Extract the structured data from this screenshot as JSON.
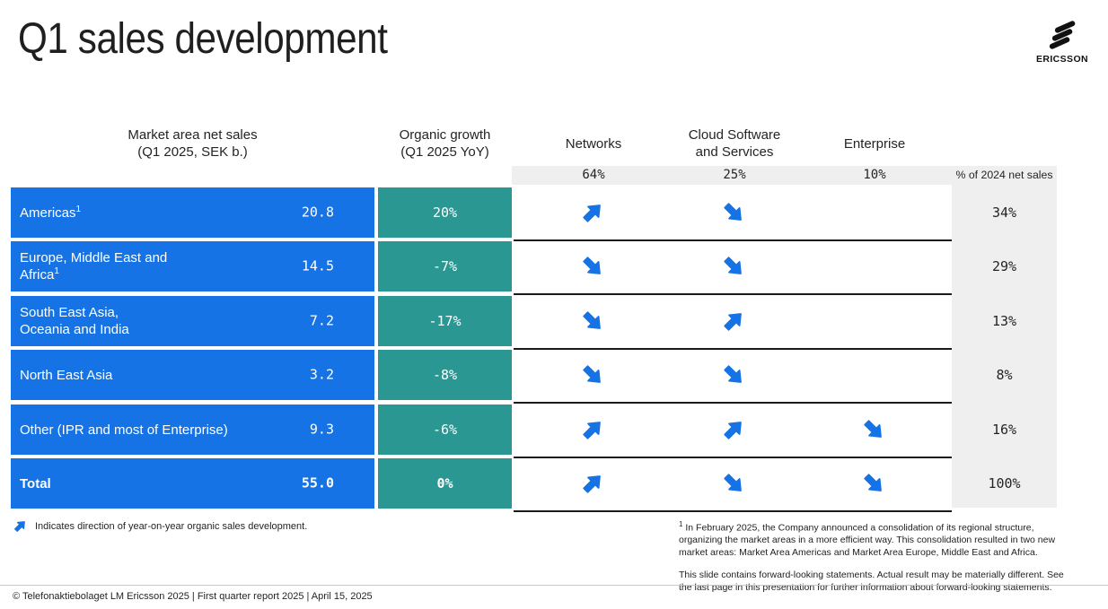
{
  "title": "Q1 sales development",
  "brand": "ERICSSON",
  "colors": {
    "blue": "#1673E5",
    "teal": "#2A9792",
    "band": "#EFEFEF"
  },
  "headers": {
    "market_l1": "Market area net sales",
    "market_l2": "(Q1 2025, SEK b.)",
    "growth_l1": "Organic growth",
    "growth_l2": "(Q1 2025 YoY)",
    "networks": "Networks",
    "cloud_l1": "Cloud Software",
    "cloud_l2": "and Services",
    "enterprise": "Enterprise",
    "share": "% of 2024 net sales"
  },
  "shares": {
    "networks": "64%",
    "cloud": "25%",
    "enterprise": "10%"
  },
  "rows": [
    {
      "line1": "Americas",
      "sup1": "1",
      "value": "20.8",
      "growth": "20%",
      "arrows": {
        "networks": "up",
        "cloud": "down",
        "enterprise": "none"
      },
      "share": "34%"
    },
    {
      "line1": "Europe, Middle East and",
      "line2": "Africa",
      "sup2": "1",
      "value": "14.5",
      "growth": "-7%",
      "arrows": {
        "networks": "down",
        "cloud": "down",
        "enterprise": "none"
      },
      "share": "29%"
    },
    {
      "line1": "South East Asia,",
      "line2": "Oceania and India",
      "value": "7.2",
      "growth": "-17%",
      "arrows": {
        "networks": "down",
        "cloud": "up",
        "enterprise": "none"
      },
      "share": "13%"
    },
    {
      "line1": "North East Asia",
      "value": "3.2",
      "growth": "-8%",
      "arrows": {
        "networks": "down",
        "cloud": "down",
        "enterprise": "none"
      },
      "share": "8%"
    },
    {
      "line1": "Other (IPR and most of Enterprise)",
      "value": "9.3",
      "growth": "-6%",
      "arrows": {
        "networks": "up",
        "cloud": "up",
        "enterprise": "down"
      },
      "share": "16%"
    },
    {
      "line1": "Total",
      "value": "55.0",
      "growth": "0%",
      "arrows": {
        "networks": "up",
        "cloud": "down",
        "enterprise": "down"
      },
      "share": "100%"
    }
  ],
  "legend": {
    "icon_dir": "up",
    "text": "Indicates direction of year-on-year organic sales development."
  },
  "footnotes": {
    "sup": "1",
    "note1": " In February 2025, the Company announced a consolidation of its regional structure, organizing the market areas in a more efficient way. This consolidation resulted in two new market areas: Market Area Americas and Market Area Europe, Middle East and Africa.",
    "note2": "This slide contains forward-looking statements. Actual result may be materially different. See the last page in this presentation for further information about forward-looking statements."
  },
  "footer": "© Telefonaktiebolaget LM Ericsson 2025  | First quarter report 2025 | April 15, 2025"
}
